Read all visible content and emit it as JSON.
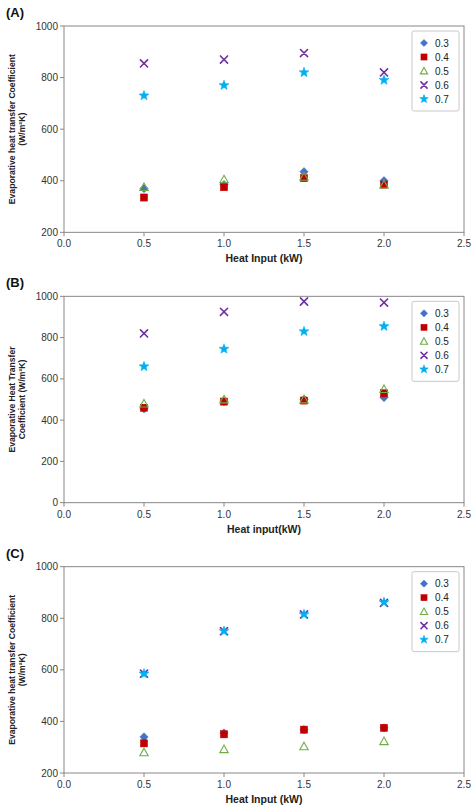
{
  "chart_data": [
    {
      "type": "scatter",
      "title": "(A)",
      "xlabel": "Heat Input (kW)",
      "ylabel": "Evaporative heat transfer Coefficient\n(W/m²K)",
      "x": [
        0.5,
        1.0,
        1.5,
        2.0
      ],
      "xlim": [
        0,
        2.5
      ],
      "xticks": [
        {
          "value": 0,
          "label": "0.0"
        },
        0.5,
        {
          "value": 1.0,
          "label": "1.0"
        },
        1.5,
        {
          "value": 2.0,
          "label": "2.0"
        },
        2.5
      ],
      "ylim": [
        200,
        1000
      ],
      "yticks": [
        200,
        400,
        600,
        800,
        1000
      ],
      "grid": false,
      "legend": "upper-right",
      "series": [
        {
          "name": "0.3",
          "color": "#4472C4",
          "marker": "diamond",
          "values": [
            370,
            385,
            435,
            400
          ]
        },
        {
          "name": "0.4",
          "color": "#C00000",
          "marker": "square",
          "values": [
            335,
            375,
            410,
            385
          ]
        },
        {
          "name": "0.5",
          "color": "#70AD47",
          "marker": "triangle-open",
          "values": [
            375,
            405,
            415,
            385
          ]
        },
        {
          "name": "0.6",
          "color": "#7030A0",
          "marker": "x",
          "values": [
            855,
            870,
            895,
            820
          ]
        },
        {
          "name": "0.7",
          "color": "#00B0F0",
          "marker": "star",
          "values": [
            730,
            770,
            820,
            790
          ]
        }
      ]
    },
    {
      "type": "scatter",
      "title": "(B)",
      "xlabel": "Heat input(kW)",
      "ylabel": "Evaporative Heat Transfer\nCoefficient (W/m²K)",
      "x": [
        0.5,
        1.0,
        1.5,
        2.0
      ],
      "xlim": [
        0,
        2.5
      ],
      "xticks": [
        {
          "value": 0,
          "label": "0.0"
        },
        0.5,
        {
          "value": 1.0,
          "label": "1.0"
        },
        1.5,
        {
          "value": 2.0,
          "label": "2.0"
        },
        2.5
      ],
      "ylim": [
        0,
        1000
      ],
      "yticks": [
        0,
        200,
        400,
        600,
        800,
        1000
      ],
      "grid": false,
      "legend": "upper-right",
      "series": [
        {
          "name": "0.3",
          "color": "#4472C4",
          "marker": "diamond",
          "values": [
            455,
            490,
            500,
            510
          ]
        },
        {
          "name": "0.4",
          "color": "#C00000",
          "marker": "square",
          "values": [
            460,
            490,
            495,
            530
          ]
        },
        {
          "name": "0.5",
          "color": "#70AD47",
          "marker": "triangle-open",
          "values": [
            480,
            500,
            500,
            550
          ]
        },
        {
          "name": "0.6",
          "color": "#7030A0",
          "marker": "x",
          "values": [
            820,
            925,
            975,
            970
          ]
        },
        {
          "name": "0.7",
          "color": "#00B0F0",
          "marker": "star",
          "values": [
            660,
            745,
            830,
            855
          ]
        }
      ]
    },
    {
      "type": "scatter",
      "title": "(C)",
      "xlabel": "Heat Input (kW)",
      "ylabel": "Evaporative heat transfer Coefficient\n(W/m²K)",
      "x": [
        0.5,
        1.0,
        1.5,
        2.0
      ],
      "xlim": [
        0,
        2.5
      ],
      "xticks": [
        {
          "value": 0,
          "label": "0.0"
        },
        0.5,
        {
          "value": 1.0,
          "label": "1.0"
        },
        1.5,
        {
          "value": 2.0,
          "label": "2.0"
        },
        2.5
      ],
      "ylim": [
        200,
        1000
      ],
      "yticks": [
        200,
        400,
        600,
        800,
        1000
      ],
      "grid": false,
      "legend": "upper-right",
      "series": [
        {
          "name": "0.3",
          "color": "#4472C4",
          "marker": "diamond",
          "values": [
            340,
            355,
            368,
            375
          ]
        },
        {
          "name": "0.4",
          "color": "#C00000",
          "marker": "square",
          "values": [
            315,
            350,
            368,
            375
          ]
        },
        {
          "name": "0.5",
          "color": "#70AD47",
          "marker": "triangle-open",
          "values": [
            280,
            292,
            303,
            323
          ]
        },
        {
          "name": "0.6",
          "color": "#7030A0",
          "marker": "x",
          "values": [
            585,
            750,
            815,
            860
          ]
        },
        {
          "name": "0.7",
          "color": "#00B0F0",
          "marker": "star",
          "values": [
            585,
            750,
            815,
            862
          ]
        }
      ]
    }
  ]
}
